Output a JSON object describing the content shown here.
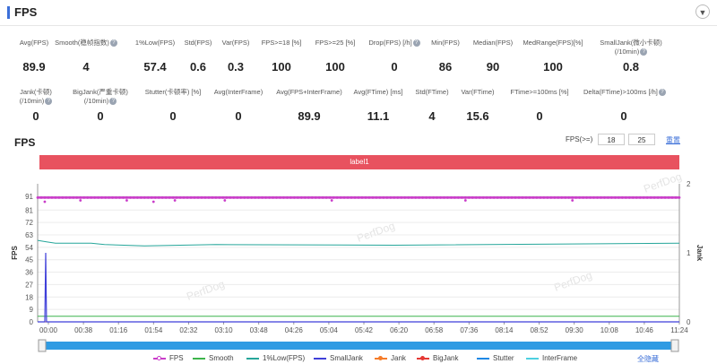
{
  "header": {
    "title": "FPS",
    "collapse_icon": "chevron-down-icon"
  },
  "stats_row1": [
    {
      "label": "Avg(FPS)",
      "value": "89.9",
      "help": false
    },
    {
      "label": "Smooth(稳帧指数)",
      "value": "4",
      "help": true
    },
    {
      "label": "1%Low(FPS)",
      "value": "57.4",
      "help": false
    },
    {
      "label": "Std(FPS)",
      "value": "0.6",
      "help": false
    },
    {
      "label": "Var(FPS)",
      "value": "0.3",
      "help": false
    },
    {
      "label": "FPS>=18 [%]",
      "value": "100",
      "help": false
    },
    {
      "label": "FPS>=25 [%]",
      "value": "100",
      "help": false
    },
    {
      "label": "Drop(FPS) [/h]",
      "value": "0",
      "help": true
    },
    {
      "label": "Min(FPS)",
      "value": "86",
      "help": false
    },
    {
      "label": "Median(FPS)",
      "value": "90",
      "help": false
    },
    {
      "label": "MedRange(FPS)[%]",
      "value": "100",
      "help": false
    },
    {
      "label": "SmallJank(微小卡顿)",
      "label2": "(/10min)",
      "value": "0.8",
      "help": true
    }
  ],
  "stats_row2": [
    {
      "label": "Jank(卡顿)",
      "label2": "(/10min)",
      "value": "0",
      "help": true
    },
    {
      "label": "BigJank(严重卡顿)",
      "label2": "(/10min)",
      "value": "0",
      "help": true
    },
    {
      "label": "Stutter(卡顿率) [%]",
      "value": "0",
      "help": false
    },
    {
      "label": "Avg(InterFrame)",
      "value": "0",
      "help": false
    },
    {
      "label": "Avg(FPS+InterFrame)",
      "value": "89.9",
      "help": false
    },
    {
      "label": "Avg(FTime) [ms]",
      "value": "11.1",
      "help": false
    },
    {
      "label": "Std(FTime)",
      "value": "4",
      "help": false
    },
    {
      "label": "Var(FTime)",
      "value": "15.6",
      "help": false
    },
    {
      "label": "FTime>=100ms [%]",
      "value": "0",
      "help": false
    },
    {
      "label": "Delta(FTime)>100ms [/h]",
      "value": "0",
      "help": true
    }
  ],
  "chart_section": {
    "title": "FPS",
    "fps_ge_label": "FPS(>=)",
    "fps_ge_values": [
      "18",
      "25"
    ],
    "reset_label": "重置",
    "band_label": "label1",
    "hide_all_label": "全隐藏"
  },
  "watermark": "PerfDog",
  "colors": {
    "fps": "#c93cc9",
    "smooth": "#3cb44b",
    "low1": "#26a69a",
    "smalljank": "#3f3fd9",
    "jank": "#f57c2a",
    "bigjank": "#e53935",
    "stutter": "#1e88e5",
    "interframe": "#4dd0e1",
    "band": "#e8525f",
    "accent": "#3b6fd8"
  },
  "chart_data": {
    "type": "line",
    "title": "",
    "ylabel": "FPS",
    "y2label": "Jank",
    "ylim": [
      0,
      100
    ],
    "y2lim": [
      0,
      2
    ],
    "yticks": [
      0,
      9,
      18,
      27,
      36,
      45,
      54,
      63,
      72,
      81,
      91
    ],
    "y2ticks": [
      0,
      1,
      2
    ],
    "xticks": [
      "00:00",
      "00:38",
      "01:16",
      "01:54",
      "02:32",
      "03:10",
      "03:48",
      "04:26",
      "05:04",
      "05:42",
      "06:20",
      "06:58",
      "07:36",
      "08:14",
      "08:52",
      "09:30",
      "10:08",
      "10:46",
      "11:24"
    ],
    "duration_s": 720,
    "series": [
      {
        "name": "FPS",
        "type": "line-marker",
        "points": [
          [
            0,
            90
          ],
          [
            60,
            90
          ],
          [
            120,
            90
          ],
          [
            180,
            90
          ],
          [
            240,
            90
          ],
          [
            300,
            90
          ],
          [
            360,
            90
          ],
          [
            420,
            90
          ],
          [
            480,
            90
          ],
          [
            540,
            90
          ],
          [
            600,
            90
          ],
          [
            660,
            90
          ],
          [
            720,
            90
          ]
        ],
        "dips": [
          [
            8,
            87
          ],
          [
            48,
            88
          ],
          [
            100,
            88
          ],
          [
            130,
            87
          ],
          [
            154,
            88
          ],
          [
            210,
            88
          ],
          [
            330,
            88
          ],
          [
            480,
            88
          ],
          [
            600,
            88
          ]
        ]
      },
      {
        "name": "Smooth",
        "points": [
          [
            0,
            4
          ],
          [
            720,
            4
          ]
        ]
      },
      {
        "name": "1%Low(FPS)",
        "points": [
          [
            0,
            59
          ],
          [
            10,
            58
          ],
          [
            20,
            57
          ],
          [
            60,
            57
          ],
          [
            75,
            56
          ],
          [
            120,
            55
          ],
          [
            200,
            56
          ],
          [
            400,
            55.5
          ],
          [
            720,
            57
          ]
        ]
      },
      {
        "name": "SmallJank",
        "points": [
          [
            0,
            0
          ],
          [
            8,
            0
          ],
          [
            9,
            1
          ],
          [
            10,
            0
          ],
          [
            720,
            0
          ]
        ]
      },
      {
        "name": "Jank",
        "points": [
          [
            0,
            0
          ],
          [
            720,
            0
          ]
        ]
      },
      {
        "name": "BigJank",
        "points": [
          [
            0,
            0
          ],
          [
            720,
            0
          ]
        ]
      },
      {
        "name": "Stutter",
        "points": [
          [
            0,
            0
          ],
          [
            720,
            0
          ]
        ]
      },
      {
        "name": "InterFrame",
        "points": [
          [
            0,
            0
          ],
          [
            720,
            0
          ]
        ]
      }
    ],
    "legend_position": "bottom",
    "grid": true
  }
}
